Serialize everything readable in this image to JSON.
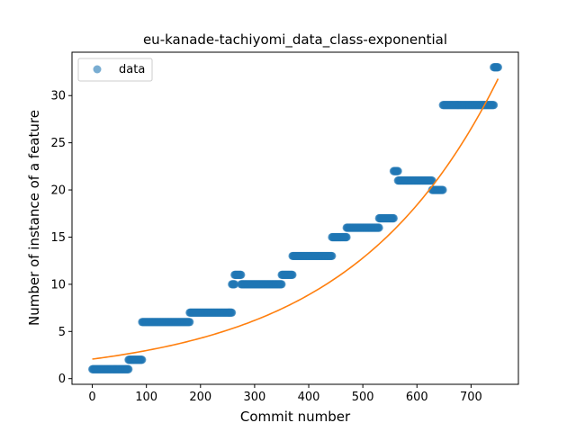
{
  "chart_data": {
    "type": "scatter",
    "title": "eu-kanade-tachiyomi_data_class-exponential",
    "xlabel": "Commit number",
    "ylabel": "Number of instance of a feature",
    "xlim": [
      -37.5,
      787.5
    ],
    "ylim": [
      -0.6,
      34.6
    ],
    "xticks": [
      0,
      100,
      200,
      300,
      400,
      500,
      600,
      700
    ],
    "yticks": [
      0,
      5,
      10,
      15,
      20,
      25,
      30
    ],
    "grid": false,
    "legend": {
      "placement": "top-left",
      "entries": [
        "data"
      ]
    },
    "colors": {
      "data": "#1f77b4",
      "fit": "#ff7f0e"
    },
    "series": [
      {
        "name": "data",
        "kind": "scatter",
        "segments": [
          {
            "x_start": 0,
            "x_end": 67,
            "y": 1
          },
          {
            "x_start": 67,
            "x_end": 92,
            "y": 2
          },
          {
            "x_start": 92,
            "x_end": 180,
            "y": 6
          },
          {
            "x_start": 180,
            "x_end": 258,
            "y": 7
          },
          {
            "x_start": 258,
            "x_end": 263,
            "y": 10
          },
          {
            "x_start": 263,
            "x_end": 275,
            "y": 11
          },
          {
            "x_start": 275,
            "x_end": 350,
            "y": 10
          },
          {
            "x_start": 350,
            "x_end": 370,
            "y": 11
          },
          {
            "x_start": 370,
            "x_end": 443,
            "y": 13
          },
          {
            "x_start": 443,
            "x_end": 470,
            "y": 15
          },
          {
            "x_start": 470,
            "x_end": 530,
            "y": 16
          },
          {
            "x_start": 530,
            "x_end": 557,
            "y": 17
          },
          {
            "x_start": 557,
            "x_end": 565,
            "y": 22
          },
          {
            "x_start": 565,
            "x_end": 628,
            "y": 21
          },
          {
            "x_start": 628,
            "x_end": 648,
            "y": 20
          },
          {
            "x_start": 648,
            "x_end": 742,
            "y": 29
          },
          {
            "x_start": 742,
            "x_end": 750,
            "y": 33
          }
        ]
      },
      {
        "name": "",
        "kind": "line",
        "fit": "exponential",
        "a": 2.07,
        "b": 0.003642,
        "x_range": [
          0,
          750
        ]
      }
    ]
  }
}
